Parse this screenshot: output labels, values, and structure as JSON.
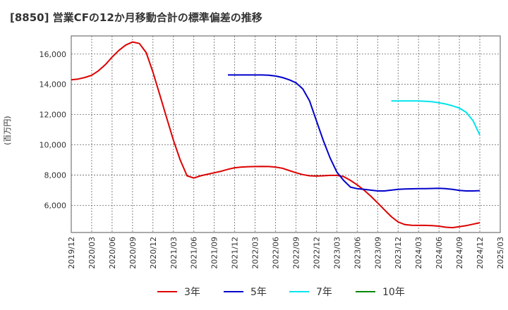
{
  "chart_data": {
    "type": "line",
    "title": "[8850]  営業CFの12か月移動合計の標準偏差の推移",
    "ylabel": "(百万円)",
    "xlabel": "",
    "ylim": [
      4200,
      17200
    ],
    "yticks": [
      {
        "value": 6000,
        "label": "6,000"
      },
      {
        "value": 8000,
        "label": "8,000"
      },
      {
        "value": 10000,
        "label": "10,000"
      },
      {
        "value": 12000,
        "label": "12,000"
      },
      {
        "value": 14000,
        "label": "14,000"
      },
      {
        "value": 16000,
        "label": "16,000"
      }
    ],
    "xticks": [
      "2019/12",
      "2020/03",
      "2020/06",
      "2020/09",
      "2020/12",
      "2021/03",
      "2021/06",
      "2021/09",
      "2021/12",
      "2022/03",
      "2022/06",
      "2022/09",
      "2022/12",
      "2023/03",
      "2023/06",
      "2023/09",
      "2023/12",
      "2024/03",
      "2024/06",
      "2024/09",
      "2024/12",
      "2025/03"
    ],
    "grid": true,
    "legend_position": "bottom",
    "series": [
      {
        "name": "3年",
        "color": "#dd0000",
        "x": [
          "2019/12",
          "2020/01",
          "2020/02",
          "2020/03",
          "2020/04",
          "2020/05",
          "2020/06",
          "2020/07",
          "2020/08",
          "2020/09",
          "2020/10",
          "2020/11",
          "2020/12",
          "2021/01",
          "2021/02",
          "2021/03",
          "2021/04",
          "2021/05",
          "2021/06",
          "2021/07",
          "2021/08",
          "2021/09",
          "2021/10",
          "2021/11",
          "2021/12",
          "2022/01",
          "2022/02",
          "2022/03",
          "2022/04",
          "2022/05",
          "2022/06",
          "2022/07",
          "2022/08",
          "2022/09",
          "2022/10",
          "2022/11",
          "2022/12",
          "2023/01",
          "2023/02",
          "2023/03",
          "2023/04",
          "2023/05",
          "2023/06",
          "2023/07",
          "2023/08",
          "2023/09",
          "2023/10",
          "2023/11",
          "2023/12",
          "2024/01",
          "2024/02",
          "2024/03",
          "2024/04",
          "2024/05",
          "2024/06",
          "2024/07",
          "2024/08",
          "2024/09",
          "2024/10",
          "2024/11",
          "2024/12"
        ],
        "values": [
          14300,
          14350,
          14450,
          14600,
          14900,
          15300,
          15800,
          16250,
          16600,
          16800,
          16700,
          16100,
          14800,
          13300,
          11800,
          10300,
          9000,
          7950,
          7800,
          7950,
          8050,
          8150,
          8250,
          8380,
          8480,
          8530,
          8550,
          8560,
          8570,
          8560,
          8530,
          8450,
          8300,
          8150,
          8030,
          7950,
          7930,
          7950,
          7980,
          7980,
          7900,
          7650,
          7350,
          7000,
          6600,
          6150,
          5700,
          5250,
          4900,
          4720,
          4680,
          4670,
          4670,
          4650,
          4620,
          4550,
          4520,
          4580,
          4650,
          4750,
          4850
        ]
      },
      {
        "name": "5年",
        "color": "#0000cc",
        "x": [
          "2021/11",
          "2021/12",
          "2022/01",
          "2022/02",
          "2022/03",
          "2022/04",
          "2022/05",
          "2022/06",
          "2022/07",
          "2022/08",
          "2022/09",
          "2022/10",
          "2022/11",
          "2022/12",
          "2023/01",
          "2023/02",
          "2023/03",
          "2023/04",
          "2023/05",
          "2023/06",
          "2023/07",
          "2023/08",
          "2023/09",
          "2023/10",
          "2023/11",
          "2023/12",
          "2024/01",
          "2024/02",
          "2024/03",
          "2024/04",
          "2024/05",
          "2024/06",
          "2024/07",
          "2024/08",
          "2024/09",
          "2024/10",
          "2024/11",
          "2024/12"
        ],
        "values": [
          14620,
          14620,
          14620,
          14620,
          14620,
          14620,
          14600,
          14550,
          14450,
          14300,
          14100,
          13700,
          12900,
          11600,
          10300,
          9150,
          8200,
          7650,
          7200,
          7100,
          7050,
          7000,
          6950,
          6950,
          7000,
          7050,
          7080,
          7090,
          7100,
          7100,
          7110,
          7120,
          7100,
          7050,
          6980,
          6950,
          6950,
          6970
        ]
      },
      {
        "name": "7年",
        "color": "#00e5ee",
        "x": [
          "2023/11",
          "2023/12",
          "2024/01",
          "2024/02",
          "2024/03",
          "2024/04",
          "2024/05",
          "2024/06",
          "2024/07",
          "2024/08",
          "2024/09",
          "2024/10",
          "2024/11",
          "2024/12"
        ],
        "values": [
          12900,
          12900,
          12900,
          12900,
          12900,
          12880,
          12850,
          12780,
          12700,
          12580,
          12430,
          12150,
          11600,
          10650
        ]
      },
      {
        "name": "10年",
        "color": "#008800",
        "x": [],
        "values": []
      }
    ]
  }
}
